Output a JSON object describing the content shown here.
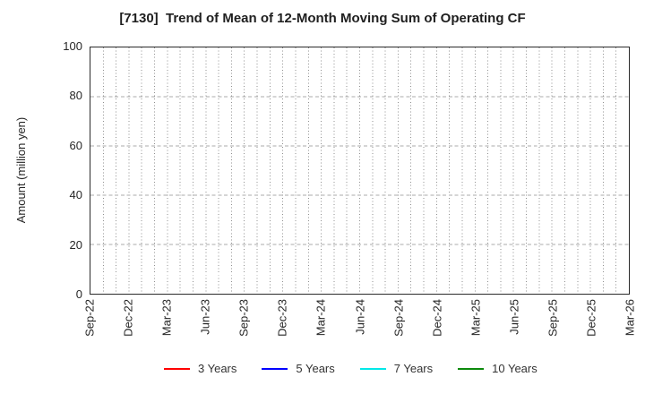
{
  "chart_data": {
    "type": "line",
    "title": "[7130]  Trend of Mean of 12-Month Moving Sum of Operating CF",
    "xlabel": "",
    "ylabel": "Amount (million yen)",
    "ylim": [
      0,
      100
    ],
    "y_ticks": [
      0,
      20,
      40,
      60,
      80,
      100
    ],
    "x_tick_labels": [
      "Sep-22",
      "Dec-22",
      "Mar-23",
      "Jun-23",
      "Sep-23",
      "Dec-23",
      "Mar-24",
      "Jun-24",
      "Sep-24",
      "Dec-24",
      "Mar-25",
      "Jun-25",
      "Sep-25",
      "Dec-25",
      "Mar-26"
    ],
    "x_months_per_labeled_tick": 3,
    "x_total_month_intervals": 42,
    "grid": true,
    "legend_position": "bottom",
    "series": [
      {
        "name": "3 Years",
        "color": "#ff0000",
        "values": []
      },
      {
        "name": "5 Years",
        "color": "#0000ff",
        "values": []
      },
      {
        "name": "7 Years",
        "color": "#00e8e8",
        "values": []
      },
      {
        "name": "10 Years",
        "color": "#0c8a0c",
        "values": []
      }
    ]
  }
}
